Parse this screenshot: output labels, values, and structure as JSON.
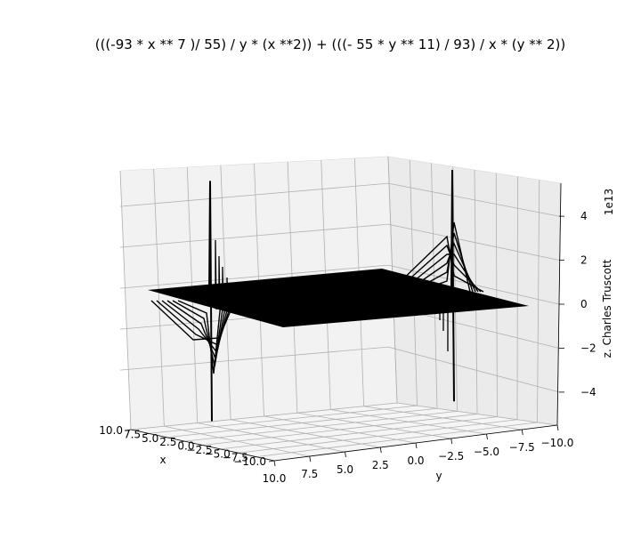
{
  "chart_data": {
    "type": "surface",
    "title": "(((-93 * x ** 7 )/ 55) / y * (x **2)) + (((- 55 * y ** 11) / 93) / x * (y  ** 2))",
    "xlabel": "x",
    "ylabel": "y",
    "zlabel": "z. Charles Truscott",
    "z_offset_label": "1e13",
    "xlim": [
      -10,
      10
    ],
    "ylim": [
      -10,
      10
    ],
    "zlim": [
      -5.5,
      5.5
    ],
    "x_ticks": [
      "10.0",
      "7.5",
      "5.0",
      "2.5",
      "0.0",
      "−2.5",
      "−5.0",
      "−7.5",
      "−10.0"
    ],
    "y_ticks": [
      "10.0",
      "7.5",
      "5.0",
      "2.5",
      "0.0",
      "−2.5",
      "−5.0",
      "−7.5",
      "−10.0"
    ],
    "z_ticks": [
      "4",
      "2",
      "0",
      "−2",
      "−4"
    ],
    "surface_color": "#000000",
    "grid": true,
    "features": [
      {
        "location": "near y = 0, x > 0",
        "peak_z": 5.2,
        "trough_z": -5.4
      },
      {
        "location": "near x = 0, y < 0",
        "peak_z": 5.5,
        "trough_z": -4.7
      }
    ]
  }
}
